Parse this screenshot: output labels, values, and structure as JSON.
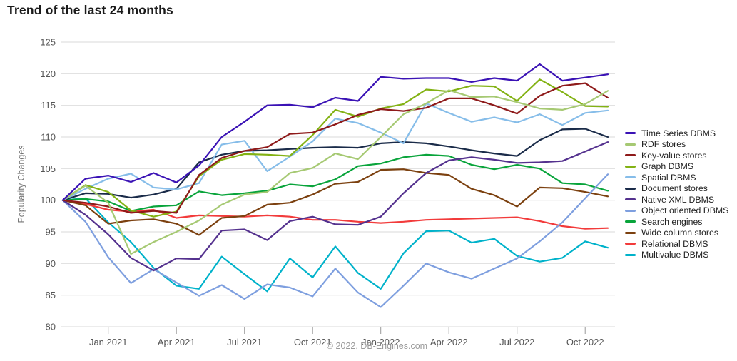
{
  "header": {
    "title": "Trend of the last 24 months"
  },
  "footer": {
    "copyright": "© 2022, DB-Engines.com"
  },
  "chart_data": {
    "type": "line",
    "title": "Trend of the last 24 months",
    "xlabel": "",
    "ylabel": "Popularity Changes",
    "ylim": [
      80,
      125
    ],
    "grid": true,
    "legend_position": "right",
    "y_ticks": [
      125,
      120,
      115,
      110,
      105,
      100,
      95,
      90,
      85,
      80
    ],
    "x": [
      "Nov 2020",
      "Dec 2020",
      "Jan 2021",
      "Feb 2021",
      "Mar 2021",
      "Apr 2021",
      "May 2021",
      "Jun 2021",
      "Jul 2021",
      "Aug 2021",
      "Sep 2021",
      "Oct 2021",
      "Nov 2021",
      "Dec 2021",
      "Jan 2022",
      "Feb 2022",
      "Mar 2022",
      "Apr 2022",
      "May 2022",
      "Jun 2022",
      "Jul 2022",
      "Aug 2022",
      "Sep 2022",
      "Oct 2022",
      "Nov 2022"
    ],
    "x_ticks": [
      {
        "index": 2,
        "label": "Jan 2021"
      },
      {
        "index": 5,
        "label": "Apr 2021"
      },
      {
        "index": 8,
        "label": "Jul 2021"
      },
      {
        "index": 11,
        "label": "Oct 2021"
      },
      {
        "index": 14,
        "label": "Jan 2022"
      },
      {
        "index": 17,
        "label": "Apr 2022"
      },
      {
        "index": 20,
        "label": "Jul 2022"
      },
      {
        "index": 23,
        "label": "Oct 2022"
      }
    ],
    "series": [
      {
        "name": "Time Series DBMS",
        "color": "#3a12b5",
        "values": [
          100,
          103.4,
          103.9,
          102.9,
          104.3,
          102.8,
          105.5,
          110.0,
          112.4,
          115.0,
          115.1,
          114.7,
          116.2,
          115.7,
          119.5,
          119.2,
          119.3,
          119.3,
          118.7,
          119.3,
          118.9,
          121.5,
          118.9,
          119.4,
          119.9
        ]
      },
      {
        "name": "RDF stores",
        "color": "#a6c973",
        "values": [
          100,
          102.3,
          99.6,
          91.5,
          93.4,
          95.0,
          96.8,
          99.3,
          100.9,
          101.3,
          104.3,
          105.1,
          107.4,
          106.5,
          110.0,
          113.6,
          115.3,
          117.4,
          116.3,
          116.4,
          115.5,
          114.5,
          114.3,
          115.2,
          117.3
        ]
      },
      {
        "name": "Key-value stores",
        "color": "#8e1a1a",
        "values": [
          100,
          99.6,
          99.0,
          98.0,
          98.3,
          98.0,
          104.0,
          106.7,
          107.8,
          108.4,
          110.5,
          110.7,
          112.0,
          113.5,
          114.4,
          114.1,
          114.6,
          116.1,
          116.1,
          115.0,
          113.7,
          116.5,
          118.1,
          118.5,
          116.2
        ]
      },
      {
        "name": "Graph DBMS",
        "color": "#83b214",
        "values": [
          100,
          102.4,
          101.3,
          98.4,
          97.4,
          98.2,
          103.8,
          106.4,
          107.3,
          107.2,
          107.0,
          110.3,
          114.3,
          113.2,
          114.5,
          115.2,
          117.5,
          117.2,
          118.1,
          118.0,
          115.7,
          119.1,
          117.1,
          114.9,
          114.8
        ]
      },
      {
        "name": "Spatial DBMS",
        "color": "#86bde9",
        "values": [
          100,
          101.8,
          103.4,
          104.2,
          102.0,
          101.7,
          102.7,
          108.8,
          109.4,
          104.6,
          106.9,
          109.3,
          112.9,
          112.2,
          110.7,
          109.0,
          115.3,
          113.8,
          112.4,
          113.1,
          112.3,
          113.6,
          111.9,
          113.8,
          114.2
        ]
      },
      {
        "name": "Document stores",
        "color": "#1a2b49",
        "values": [
          100,
          101.1,
          101.0,
          100.4,
          100.9,
          101.8,
          106.0,
          107.2,
          107.8,
          107.9,
          108.1,
          108.3,
          108.4,
          108.3,
          109.0,
          109.2,
          109.0,
          108.5,
          107.9,
          107.4,
          107.0,
          109.5,
          111.2,
          111.3,
          110.0
        ]
      },
      {
        "name": "Native XML DBMS",
        "color": "#54318e",
        "values": [
          100,
          97.7,
          94.6,
          90.9,
          88.9,
          90.8,
          90.7,
          95.2,
          95.4,
          93.7,
          96.7,
          97.4,
          96.2,
          96.1,
          97.4,
          101.1,
          104.3,
          106.3,
          106.8,
          106.4,
          105.9,
          106.0,
          106.2,
          107.7,
          109.2
        ]
      },
      {
        "name": "Object oriented DBMS",
        "color": "#7e9fdf",
        "values": [
          100,
          96.6,
          91.0,
          86.9,
          89.1,
          87.0,
          84.9,
          86.6,
          84.4,
          86.7,
          86.2,
          84.8,
          89.2,
          85.4,
          83.1,
          86.5,
          90.0,
          88.6,
          87.6,
          89.2,
          90.8,
          93.5,
          96.5,
          100.3,
          104.1
        ]
      },
      {
        "name": "Search engines",
        "color": "#09a43b",
        "values": [
          100,
          100.2,
          99.8,
          98.3,
          99.0,
          99.2,
          101.4,
          100.8,
          101.1,
          101.5,
          102.5,
          102.2,
          103.3,
          105.4,
          105.8,
          106.8,
          107.2,
          107.0,
          105.6,
          104.9,
          105.6,
          105.0,
          102.7,
          102.5,
          101.5
        ]
      },
      {
        "name": "Wide column stores",
        "color": "#7c4110",
        "values": [
          100,
          99.2,
          96.3,
          96.8,
          97.0,
          96.3,
          94.5,
          97.2,
          97.5,
          99.3,
          99.6,
          100.9,
          102.6,
          102.9,
          104.8,
          104.9,
          104.3,
          104.0,
          101.8,
          100.8,
          99.0,
          102.0,
          101.9,
          101.3,
          100.6
        ]
      },
      {
        "name": "Relational DBMS",
        "color": "#f23b3b",
        "values": [
          100,
          99.4,
          98.5,
          98.2,
          98.5,
          97.2,
          97.6,
          97.5,
          97.4,
          97.6,
          97.4,
          96.9,
          96.9,
          96.6,
          96.4,
          96.6,
          96.9,
          97.0,
          97.1,
          97.2,
          97.3,
          96.7,
          95.9,
          95.5,
          95.6
        ]
      },
      {
        "name": "Multivalue DBMS",
        "color": "#00b2ca",
        "values": [
          100,
          100.3,
          96.5,
          93.4,
          89.3,
          86.5,
          86.0,
          91.1,
          88.3,
          85.6,
          90.8,
          87.8,
          92.7,
          88.5,
          86.0,
          91.6,
          95.1,
          95.2,
          93.3,
          93.9,
          91.2,
          90.3,
          90.9,
          93.5,
          92.5
        ]
      }
    ]
  }
}
